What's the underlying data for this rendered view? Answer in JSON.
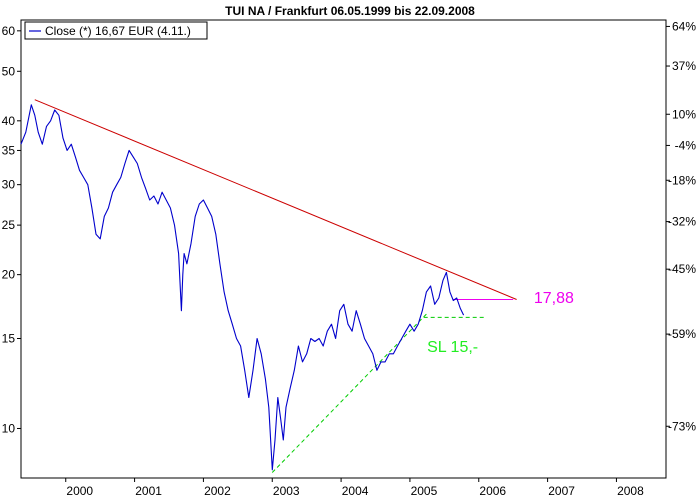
{
  "chart_data": {
    "type": "line",
    "title": "TUI NA / Frankfurt 06.05.1999 bis 22.09.2008",
    "legend": {
      "label": "Close (*) 16,67 EUR (4.11.)",
      "placement": "top-left"
    },
    "y_scale": "log",
    "ylim": [
      8,
      63
    ],
    "xlim": [
      1999.35,
      2008.72
    ],
    "grid": false,
    "y_ticks_left": [
      60,
      50,
      40,
      35,
      30,
      25,
      20,
      15,
      10
    ],
    "y_ticks_right": [
      {
        "label": "64%",
        "value": 61.2
      },
      {
        "label": "37%",
        "value": 51.2
      },
      {
        "label": "10%",
        "value": 41.2
      },
      {
        "label": "-4%",
        "value": 35.8
      },
      {
        "label": "-18%",
        "value": 30.6
      },
      {
        "label": "-32%",
        "value": 25.4
      },
      {
        "label": "-45%",
        "value": 20.5
      },
      {
        "label": "-59%",
        "value": 15.3
      },
      {
        "label": "-73%",
        "value": 10.1
      }
    ],
    "x_ticks": [
      {
        "label": "2000",
        "value": 2000.0
      },
      {
        "label": "2001",
        "value": 2001.0
      },
      {
        "label": "2002",
        "value": 2002.0
      },
      {
        "label": "2003",
        "value": 2003.0
      },
      {
        "label": "2004",
        "value": 2004.0
      },
      {
        "label": "2005",
        "value": 2005.0
      },
      {
        "label": "2006",
        "value": 2006.0
      },
      {
        "label": "2007",
        "value": 2007.0
      },
      {
        "label": "2008",
        "value": 2008.0
      }
    ],
    "series": [
      {
        "name": "Close (*) 16,67 EUR (4.11.)",
        "color": "#0000cc",
        "x": [
          1999.35,
          1999.42,
          1999.5,
          1999.55,
          1999.6,
          1999.66,
          1999.72,
          1999.78,
          1999.84,
          1999.9,
          1999.96,
          2000.02,
          2000.08,
          2000.14,
          2000.2,
          2000.26,
          2000.32,
          2000.38,
          2000.44,
          2000.5,
          2000.56,
          2000.62,
          2000.68,
          2000.74,
          2000.8,
          2000.86,
          2000.92,
          2000.98,
          2001.04,
          2001.1,
          2001.16,
          2001.22,
          2001.28,
          2001.34,
          2001.4,
          2001.46,
          2001.52,
          2001.58,
          2001.64,
          2001.68,
          2001.7,
          2001.72,
          2001.76,
          2001.82,
          2001.88,
          2001.94,
          2002.0,
          2002.06,
          2002.12,
          2002.18,
          2002.24,
          2002.3,
          2002.36,
          2002.42,
          2002.48,
          2002.54,
          2002.6,
          2002.66,
          2002.72,
          2002.78,
          2002.84,
          2002.9,
          2002.95,
          2003.0,
          2003.04,
          2003.08,
          2003.12,
          2003.16,
          2003.2,
          2003.26,
          2003.32,
          2003.38,
          2003.44,
          2003.5,
          2003.56,
          2003.62,
          2003.68,
          2003.74,
          2003.8,
          2003.86,
          2003.92,
          2003.98,
          2004.04,
          2004.1,
          2004.16,
          2004.22,
          2004.28,
          2004.34,
          2004.4,
          2004.46,
          2004.52,
          2004.58,
          2004.64,
          2004.7,
          2004.76,
          2004.82,
          2004.88,
          2004.94,
          2005.0,
          2005.06,
          2005.12,
          2005.18,
          2005.24,
          2005.3,
          2005.36,
          2005.42,
          2005.48,
          2005.53,
          2005.58,
          2005.63,
          2005.68,
          2005.73,
          2005.78
        ],
        "values": [
          36,
          38,
          43,
          41,
          38,
          36,
          39,
          40,
          42,
          41,
          37,
          35,
          36,
          34,
          32,
          31,
          30,
          27,
          24,
          23.5,
          26,
          27,
          29,
          30,
          31,
          33,
          35,
          34,
          33,
          31,
          29.5,
          28,
          28.5,
          27.5,
          29,
          28,
          27,
          25,
          22,
          17,
          20,
          22,
          21,
          23,
          26,
          27.5,
          28,
          27,
          26,
          24,
          21,
          18.5,
          17,
          16,
          15,
          14.5,
          13,
          11.5,
          13,
          15,
          14,
          12.5,
          11,
          8.3,
          9.5,
          11.5,
          10.5,
          9.5,
          11,
          12,
          13,
          14.5,
          13.5,
          14,
          15,
          14.8,
          15,
          14.5,
          15.5,
          16,
          15,
          17,
          17.5,
          16,
          15.5,
          17,
          16,
          15,
          14.5,
          14,
          13,
          13.5,
          13.5,
          14,
          14,
          14.5,
          15,
          15.5,
          16,
          15.5,
          16,
          17,
          18.5,
          19,
          17.5,
          18,
          19.5,
          20.2,
          18.5,
          17.8,
          18,
          17.2,
          16.67
        ]
      }
    ],
    "lines": [
      {
        "label": "trend-resistance",
        "color": "#cc0000",
        "dashed": false,
        "x": [
          1999.55,
          2006.55
        ],
        "y": [
          44,
          17.88
        ]
      },
      {
        "label": "trend-support",
        "color": "#00cc00",
        "dashed": true,
        "x": [
          2003.0,
          2005.25
        ],
        "y": [
          8.2,
          16.8
        ]
      },
      {
        "label": "level-17.88",
        "color": "#ee00ee",
        "dashed": false,
        "x": [
          2005.62,
          2006.5
        ],
        "y": [
          17.88,
          17.88
        ]
      },
      {
        "label": "level-sl",
        "color": "#00cc00",
        "dashed": true,
        "x": [
          2005.2,
          2006.1
        ],
        "y": [
          16.5,
          16.5
        ]
      }
    ],
    "annotations": [
      {
        "text": "17,88",
        "color": "#ee00ee",
        "x": 2006.8,
        "y": 17.6
      },
      {
        "text": "SL 15,-",
        "color": "#22ee22",
        "x": 2005.25,
        "y": 14.1
      }
    ]
  }
}
